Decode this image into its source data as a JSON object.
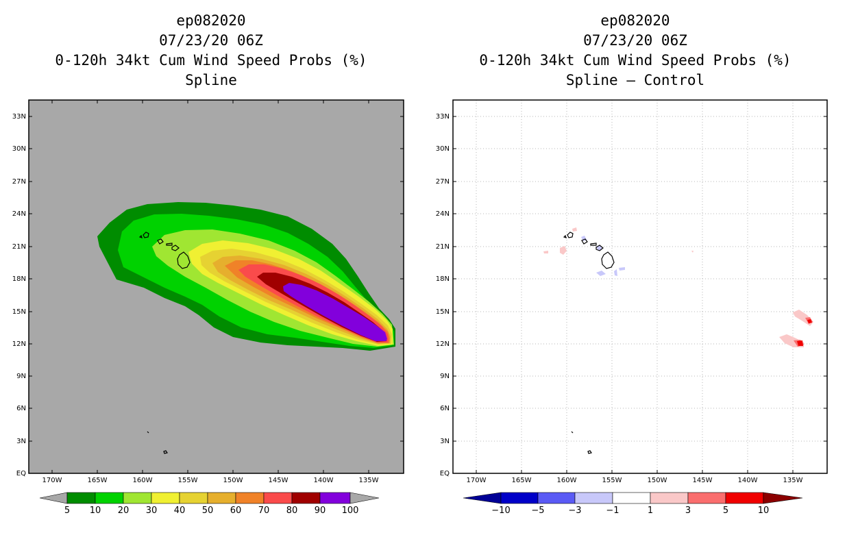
{
  "panels": [
    {
      "id": "left",
      "title_lines": [
        "ep082020",
        "07/23/20 06Z",
        "0-120h 34kt Cum Wind Speed Probs (%)",
        "Spline"
      ],
      "background_color": "#a8a8a8",
      "lat_labels": [
        "EQ",
        "3N",
        "6N",
        "9N",
        "12N",
        "15N",
        "18N",
        "21N",
        "24N",
        "27N",
        "30N",
        "33N"
      ],
      "lon_labels": [
        "170W",
        "165W",
        "160W",
        "155W",
        "150W",
        "145W",
        "140W",
        "135W"
      ],
      "colorbar": {
        "colors": [
          "#008c00",
          "#00d200",
          "#a0e632",
          "#f0f032",
          "#e6d232",
          "#e6af2d",
          "#f08228",
          "#fa4b4b",
          "#a00000",
          "#8200dc"
        ],
        "labels": [
          "5",
          "10",
          "20",
          "30",
          "40",
          "50",
          "60",
          "70",
          "80",
          "90",
          "100"
        ]
      }
    },
    {
      "id": "right",
      "title_lines": [
        "ep082020",
        "07/23/20 06Z",
        "0-120h 34kt Cum Wind Speed Probs (%)",
        "Spline – Control"
      ],
      "background_color": "#ffffff",
      "lat_labels": [
        "EQ",
        "3N",
        "6N",
        "9N",
        "12N",
        "15N",
        "18N",
        "21N",
        "24N",
        "27N",
        "30N",
        "33N"
      ],
      "lon_labels": [
        "170W",
        "165W",
        "160W",
        "155W",
        "150W",
        "145W",
        "140W",
        "135W"
      ],
      "colorbar": {
        "colors": [
          "#0000c8",
          "#5a5af5",
          "#c8c8fa",
          "#ffffff",
          "#fac8c8",
          "#fa6e6e",
          "#f00000"
        ],
        "end_colors": [
          "#000096",
          "#8c0000"
        ],
        "labels": [
          "−10",
          "−5",
          "−3",
          "−1",
          "1",
          "3",
          "5",
          "10"
        ]
      }
    }
  ]
}
